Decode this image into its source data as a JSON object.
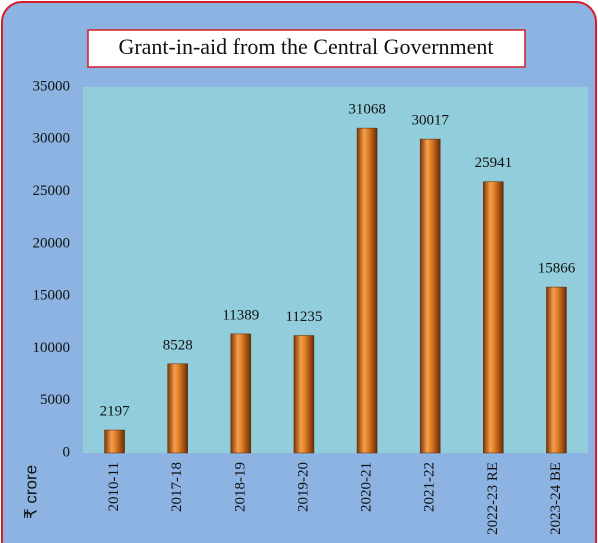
{
  "chart_data": {
    "type": "bar",
    "title": "Grant-in-aid from the Central Government",
    "y_label": "₹ crore",
    "categories": [
      "2010-11",
      "2017-18",
      "2018-19",
      "2019-20",
      "2020-21",
      "2021-22",
      "2022-23 RE",
      "2023-24 BE"
    ],
    "values": [
      2197,
      8528,
      11389,
      11235,
      31068,
      30017,
      25941,
      15866
    ],
    "color": "#d9731f",
    "ylim": [
      0,
      35000
    ],
    "yticks": [
      0,
      5000,
      10000,
      15000,
      20000,
      25000,
      30000,
      35000
    ],
    "grid": false
  }
}
